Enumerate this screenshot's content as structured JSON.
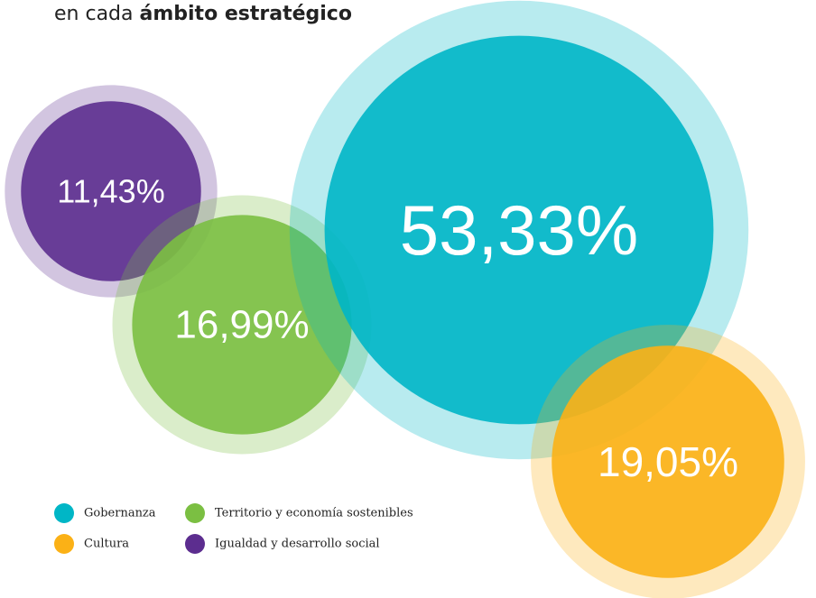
{
  "chart_data": {
    "type": "bubble",
    "title_regular": "en cada",
    "title_bold": "ámbito estratégico",
    "series": [
      {
        "name": "Gobernanza",
        "color": "#00b6c6",
        "value": 53.33,
        "value_label": "53,33%"
      },
      {
        "name": "Territorio y economía sostenibles",
        "color": "#7bbf42",
        "value": 16.99,
        "value_label": "16,99%"
      },
      {
        "name": "Cultura",
        "color": "#fbb116",
        "value": 19.05,
        "value_label": "19,05%"
      },
      {
        "name": "Igualdad y desarrollo social",
        "color": "#5c2d8f",
        "value": 11.43,
        "value_label": "11,43%"
      }
    ]
  }
}
